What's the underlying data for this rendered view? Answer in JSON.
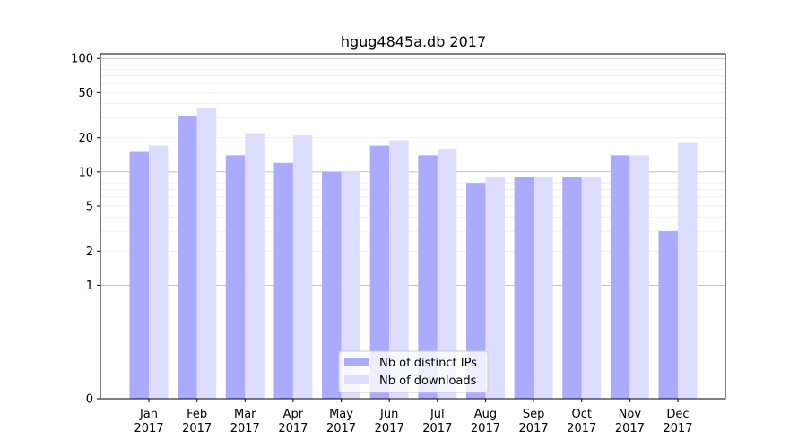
{
  "chart_data": {
    "type": "bar",
    "title": "hgug4845a.db 2017",
    "xlabel": "",
    "ylabel": "",
    "yscale": "symlog",
    "ylim": [
      0,
      110
    ],
    "yticks": [
      0,
      1,
      2,
      5,
      10,
      20,
      50,
      100
    ],
    "categories": [
      "Jan\n2017",
      "Feb\n2017",
      "Mar\n2017",
      "Apr\n2017",
      "May\n2017",
      "Jun\n2017",
      "Jul\n2017",
      "Aug\n2017",
      "Sep\n2017",
      "Oct\n2017",
      "Nov\n2017",
      "Dec\n2017"
    ],
    "series": [
      {
        "name": "Nb of distinct IPs",
        "color": "#aaaaff",
        "values": [
          15,
          31,
          14,
          12,
          10,
          17,
          14,
          8,
          9,
          9,
          14,
          3
        ]
      },
      {
        "name": "Nb of downloads",
        "color": "#ddddff",
        "values": [
          17,
          37,
          22,
          21,
          10,
          19,
          16,
          9,
          9,
          9,
          14,
          18
        ]
      }
    ],
    "legend": "lower center",
    "grid": true
  }
}
